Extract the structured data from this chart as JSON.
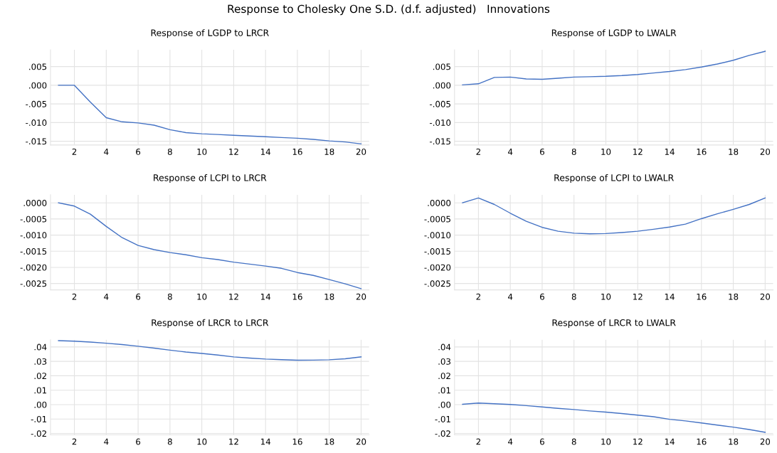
{
  "chart_data": [
    {
      "type": "line",
      "title": "Response to Cholesky One S.D. (d.f. adjusted)   Innovations",
      "subtitle": "Response of LGDP to LRCR",
      "x": [
        1,
        2,
        3,
        4,
        5,
        6,
        7,
        8,
        9,
        10,
        11,
        12,
        13,
        14,
        15,
        16,
        17,
        18,
        19,
        20
      ],
      "series": [
        {
          "color": "#4472c4",
          "values": [
            0,
            0,
            -0.0045,
            -0.0087,
            -0.0098,
            -0.0101,
            -0.0107,
            -0.0119,
            -0.0127,
            -0.013,
            -0.0132,
            -0.0134,
            -0.0136,
            -0.0138,
            -0.014,
            -0.0142,
            -0.0145,
            -0.0149,
            -0.0152,
            -0.0157
          ]
        }
      ],
      "xlim": [
        0.5,
        20.5
      ],
      "xticks": [
        2,
        4,
        6,
        8,
        10,
        12,
        14,
        16,
        18,
        20
      ],
      "ylim": [
        -0.016,
        0.0095
      ],
      "yticks": [
        {
          "value": -0.015,
          "label": "-.015"
        },
        {
          "value": -0.01,
          "label": "-.010"
        },
        {
          "value": -0.005,
          "label": "-.005"
        },
        {
          "value": 0,
          "label": ".000"
        },
        {
          "value": 0.005,
          "label": ".005"
        }
      ],
      "grid": true,
      "line_style": "solid",
      "marker": "none"
    },
    {
      "type": "line",
      "subtitle": "Response of LGDP to LWALR",
      "x": [
        1,
        2,
        3,
        4,
        5,
        6,
        7,
        8,
        9,
        10,
        11,
        12,
        13,
        14,
        15,
        16,
        17,
        18,
        19,
        20
      ],
      "series": [
        {
          "color": "#4472c4",
          "values": [
            0.0001,
            0.0004,
            0.0021,
            0.0022,
            0.0017,
            0.0016,
            0.0019,
            0.0022,
            0.0023,
            0.0024,
            0.0026,
            0.0029,
            0.0033,
            0.0037,
            0.0042,
            0.0049,
            0.0057,
            0.0067,
            0.008,
            0.0091
          ]
        }
      ],
      "xlim": [
        0.5,
        20.5
      ],
      "xticks": [
        2,
        4,
        6,
        8,
        10,
        12,
        14,
        16,
        18,
        20
      ],
      "ylim": [
        -0.016,
        0.0095
      ],
      "yticks": [
        {
          "value": -0.015,
          "label": "-.015"
        },
        {
          "value": -0.01,
          "label": "-.010"
        },
        {
          "value": -0.005,
          "label": "-.005"
        },
        {
          "value": 0,
          "label": ".000"
        },
        {
          "value": 0.005,
          "label": ".005"
        }
      ],
      "grid": true,
      "line_style": "solid",
      "marker": "none"
    },
    {
      "type": "line",
      "subtitle": "Response of LCPI to LRCR",
      "x": [
        1,
        2,
        3,
        4,
        5,
        6,
        7,
        8,
        9,
        10,
        11,
        12,
        13,
        14,
        15,
        16,
        17,
        18,
        19,
        20
      ],
      "series": [
        {
          "color": "#4472c4",
          "values": [
            0,
            -0.0001,
            -0.00035,
            -0.00073,
            -0.00108,
            -0.00132,
            -0.00145,
            -0.00154,
            -0.00161,
            -0.0017,
            -0.00176,
            -0.00184,
            -0.0019,
            -0.00196,
            -0.00203,
            -0.00216,
            -0.00225,
            -0.00238,
            -0.00251,
            -0.00266
          ]
        }
      ],
      "xlim": [
        0.5,
        20.5
      ],
      "xticks": [
        2,
        4,
        6,
        8,
        10,
        12,
        14,
        16,
        18,
        20
      ],
      "ylim": [
        -0.0027,
        0.00025
      ],
      "yticks": [
        {
          "value": -0.0025,
          "label": "-.0025"
        },
        {
          "value": -0.002,
          "label": "-.0020"
        },
        {
          "value": -0.0015,
          "label": "-.0015"
        },
        {
          "value": -0.001,
          "label": "-.0010"
        },
        {
          "value": -0.0005,
          "label": "-.0005"
        },
        {
          "value": 0,
          "label": ".0000"
        }
      ],
      "grid": true,
      "line_style": "solid",
      "marker": "none"
    },
    {
      "type": "line",
      "subtitle": "Response of LCPI to LWALR",
      "x": [
        1,
        2,
        3,
        4,
        5,
        6,
        7,
        8,
        9,
        10,
        11,
        12,
        13,
        14,
        15,
        16,
        17,
        18,
        19,
        20
      ],
      "series": [
        {
          "color": "#4472c4",
          "values": [
            0,
            0.00015,
            -5e-05,
            -0.00032,
            -0.00057,
            -0.00076,
            -0.00088,
            -0.00094,
            -0.00096,
            -0.00095,
            -0.00092,
            -0.00088,
            -0.00082,
            -0.00075,
            -0.00066,
            -0.00049,
            -0.00034,
            -0.0002,
            -5e-05,
            0.00015
          ]
        }
      ],
      "xlim": [
        0.5,
        20.5
      ],
      "xticks": [
        2,
        4,
        6,
        8,
        10,
        12,
        14,
        16,
        18,
        20
      ],
      "ylim": [
        -0.0027,
        0.00025
      ],
      "yticks": [
        {
          "value": -0.0025,
          "label": "-.0025"
        },
        {
          "value": -0.002,
          "label": "-.0020"
        },
        {
          "value": -0.0015,
          "label": "-.0015"
        },
        {
          "value": -0.001,
          "label": "-.0010"
        },
        {
          "value": -0.0005,
          "label": "-.0005"
        },
        {
          "value": 0,
          "label": ".0000"
        }
      ],
      "grid": true,
      "line_style": "solid",
      "marker": "none"
    },
    {
      "type": "line",
      "subtitle": "Response of LRCR to LRCR",
      "x": [
        1,
        2,
        3,
        4,
        5,
        6,
        7,
        8,
        9,
        10,
        11,
        12,
        13,
        14,
        15,
        16,
        17,
        18,
        19,
        20
      ],
      "series": [
        {
          "color": "#4472c4",
          "values": [
            0.0444,
            0.044,
            0.0434,
            0.0426,
            0.0417,
            0.0405,
            0.0392,
            0.0378,
            0.0365,
            0.0355,
            0.0344,
            0.0331,
            0.0323,
            0.0316,
            0.0312,
            0.0308,
            0.0309,
            0.0311,
            0.0318,
            0.0331
          ]
        }
      ],
      "xlim": [
        0.5,
        20.5
      ],
      "xticks": [
        2,
        4,
        6,
        8,
        10,
        12,
        14,
        16,
        18,
        20
      ],
      "ylim": [
        -0.021,
        0.045
      ],
      "yticks": [
        {
          "value": -0.02,
          "label": "-.02"
        },
        {
          "value": -0.01,
          "label": "-.01"
        },
        {
          "value": 0,
          "label": ".00"
        },
        {
          "value": 0.01,
          "label": ".01"
        },
        {
          "value": 0.02,
          "label": ".02"
        },
        {
          "value": 0.03,
          "label": ".03"
        },
        {
          "value": 0.04,
          "label": ".04"
        }
      ],
      "grid": true,
      "line_style": "solid",
      "marker": "none"
    },
    {
      "type": "line",
      "subtitle": "Response of LRCR to LWALR",
      "x": [
        1,
        2,
        3,
        4,
        5,
        6,
        7,
        8,
        9,
        10,
        11,
        12,
        13,
        14,
        15,
        16,
        17,
        18,
        19,
        20
      ],
      "series": [
        {
          "color": "#4472c4",
          "values": [
            0.0002,
            0.0011,
            0.0006,
            0.0001,
            -0.0007,
            -0.0016,
            -0.0026,
            -0.0034,
            -0.0044,
            -0.0052,
            -0.0062,
            -0.0073,
            -0.0084,
            -0.0102,
            -0.0113,
            -0.0127,
            -0.0142,
            -0.0156,
            -0.0173,
            -0.0192
          ]
        }
      ],
      "xlim": [
        0.5,
        20.5
      ],
      "xticks": [
        2,
        4,
        6,
        8,
        10,
        12,
        14,
        16,
        18,
        20
      ],
      "ylim": [
        -0.021,
        0.045
      ],
      "yticks": [
        {
          "value": -0.02,
          "label": "-.02"
        },
        {
          "value": -0.01,
          "label": "-.01"
        },
        {
          "value": 0,
          "label": ".00"
        },
        {
          "value": 0.01,
          "label": ".01"
        },
        {
          "value": 0.02,
          "label": ".02"
        },
        {
          "value": 0.03,
          "label": ".03"
        },
        {
          "value": 0.04,
          "label": ".04"
        }
      ],
      "grid": true,
      "line_style": "solid",
      "marker": "none"
    }
  ]
}
